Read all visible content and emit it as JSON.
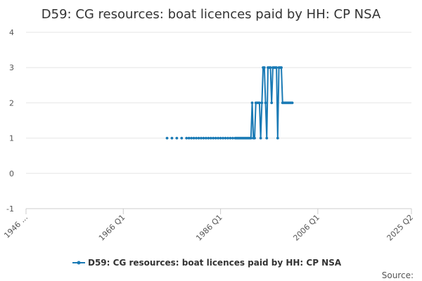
{
  "chart_data": {
    "type": "line",
    "title": "D59: CG resources: boat licences paid by HH: CP NSA",
    "series": [
      {
        "name": "D59: CG resources: boat licences paid by HH: CP NSA",
        "color": "#1a7ab5",
        "x": [
          1975.0,
          1976.0,
          1977.0,
          1978.0,
          1979.0,
          1979.5,
          1980.0,
          1980.5,
          1981.0,
          1981.5,
          1982.0,
          1982.5,
          1983.0,
          1983.5,
          1984.0,
          1984.5,
          1985.0,
          1985.5,
          1986.0,
          1986.5,
          1987.0,
          1987.5,
          1988.0,
          1988.5,
          1989.0,
          1989.25,
          1989.5,
          1989.75,
          1990.0,
          1990.25,
          1990.5,
          1990.75,
          1991.0,
          1991.25,
          1991.5,
          1991.75,
          1992.0,
          1992.25,
          1992.5,
          1992.75,
          1993.0,
          1993.25,
          1993.5,
          1993.75,
          1994.0,
          1994.25,
          1994.5,
          1994.75,
          1995.0,
          1995.25,
          1995.5,
          1995.75,
          1996.0,
          1996.25,
          1996.5,
          1996.75,
          1997.0,
          1997.25,
          1997.5,
          1997.75,
          1998.0,
          1998.25,
          1998.5,
          1998.75,
          1999.0,
          1999.25,
          1999.5,
          1999.75,
          2000.0,
          2000.25,
          2000.5,
          2000.75
        ],
        "y": [
          1,
          1,
          1,
          1,
          1,
          1,
          1,
          1,
          1,
          1,
          1,
          1,
          1,
          1,
          1,
          1,
          1,
          1,
          1,
          1,
          1,
          1,
          1,
          1,
          1,
          1,
          1,
          1,
          1,
          1,
          1,
          1,
          1,
          1,
          1,
          1,
          1,
          1,
          2,
          1,
          1,
          2,
          2,
          2,
          2,
          1,
          2,
          3,
          3,
          2,
          1,
          3,
          3,
          3,
          2,
          3,
          3,
          3,
          3,
          1,
          3,
          3,
          3,
          2,
          2,
          2,
          2,
          2,
          2,
          2,
          2,
          2
        ]
      }
    ],
    "x_ticks": [
      {
        "value": 1946.0,
        "label": "1946 ..."
      },
      {
        "value": 1966.0,
        "label": "1966 Q1"
      },
      {
        "value": 1986.0,
        "label": "1986 Q1"
      },
      {
        "value": 2006.0,
        "label": "2006 Q1"
      },
      {
        "value": 2025.25,
        "label": "2025 Q2"
      }
    ],
    "xlim": [
      1946.0,
      2025.25
    ],
    "y_ticks": [
      -1,
      0,
      1,
      2,
      3,
      4
    ],
    "ylim": [
      -1,
      4
    ],
    "grid": true,
    "legend": "bottom-center",
    "source_label": "Source:"
  }
}
